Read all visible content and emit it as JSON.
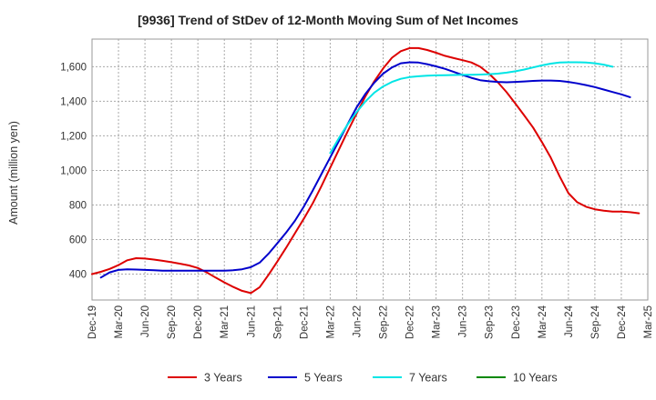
{
  "chart_data": {
    "type": "line",
    "title": "[9936]  Trend of StDev of 12-Month Moving Sum of Net Incomes",
    "ylabel": "Amount (million yen)",
    "xlabel": "",
    "ylim": [
      250,
      1760
    ],
    "yticks": [
      400,
      600,
      800,
      1000,
      1200,
      1400,
      1600
    ],
    "ytick_labels": [
      "400",
      "600",
      "800",
      "1,000",
      "1,200",
      "1,400",
      "1,600"
    ],
    "xticks": [
      "Dec-19",
      "Mar-20",
      "Jun-20",
      "Sep-20",
      "Dec-20",
      "Mar-21",
      "Jun-21",
      "Sep-21",
      "Dec-21",
      "Mar-22",
      "Jun-22",
      "Sep-22",
      "Dec-22",
      "Mar-23",
      "Jun-23",
      "Sep-23",
      "Dec-23",
      "Mar-24",
      "Jun-24",
      "Sep-24",
      "Dec-24",
      "Mar-25"
    ],
    "grid": true,
    "legend_position": "bottom",
    "series": [
      {
        "name": "3 Years",
        "color": "#dd0000",
        "points": [
          [
            0,
            400
          ],
          [
            1,
            413
          ],
          [
            2,
            430
          ],
          [
            3,
            452
          ],
          [
            4,
            480
          ],
          [
            5,
            492
          ],
          [
            6,
            490
          ],
          [
            7,
            484
          ],
          [
            8,
            477
          ],
          [
            9,
            469
          ],
          [
            10,
            460
          ],
          [
            11,
            450
          ],
          [
            12,
            435
          ],
          [
            13,
            410
          ],
          [
            14,
            380
          ],
          [
            15,
            352
          ],
          [
            16,
            326
          ],
          [
            17,
            303
          ],
          [
            18,
            290
          ],
          [
            19,
            324
          ],
          [
            20,
            396
          ],
          [
            21,
            472
          ],
          [
            22,
            552
          ],
          [
            23,
            636
          ],
          [
            24,
            720
          ],
          [
            25,
            808
          ],
          [
            26,
            908
          ],
          [
            27,
            1015
          ],
          [
            28,
            1122
          ],
          [
            29,
            1228
          ],
          [
            30,
            1330
          ],
          [
            31,
            1430
          ],
          [
            32,
            1516
          ],
          [
            33,
            1590
          ],
          [
            34,
            1652
          ],
          [
            35,
            1690
          ],
          [
            36,
            1708
          ],
          [
            37,
            1708
          ],
          [
            38,
            1697
          ],
          [
            39,
            1681
          ],
          [
            40,
            1663
          ],
          [
            41,
            1650
          ],
          [
            42,
            1638
          ],
          [
            43,
            1625
          ],
          [
            44,
            1600
          ],
          [
            45,
            1560
          ],
          [
            46,
            1510
          ],
          [
            47,
            1452
          ],
          [
            48,
            1386
          ],
          [
            49,
            1318
          ],
          [
            50,
            1248
          ],
          [
            51,
            1164
          ],
          [
            52,
            1074
          ],
          [
            53,
            966
          ],
          [
            54,
            868
          ],
          [
            55,
            816
          ],
          [
            56,
            790
          ],
          [
            57,
            775
          ],
          [
            58,
            767
          ],
          [
            59,
            762
          ],
          [
            60,
            762
          ],
          [
            61,
            758
          ],
          [
            62,
            752
          ]
        ]
      },
      {
        "name": "5 Years",
        "color": "#0000cc",
        "points": [
          [
            1,
            380
          ],
          [
            2,
            410
          ],
          [
            3,
            424
          ],
          [
            4,
            428
          ],
          [
            5,
            426
          ],
          [
            6,
            424
          ],
          [
            7,
            422
          ],
          [
            8,
            420
          ],
          [
            9,
            420
          ],
          [
            10,
            420
          ],
          [
            11,
            420
          ],
          [
            12,
            420
          ],
          [
            13,
            420
          ],
          [
            14,
            420
          ],
          [
            15,
            420
          ],
          [
            16,
            422
          ],
          [
            17,
            428
          ],
          [
            18,
            440
          ],
          [
            19,
            466
          ],
          [
            20,
            518
          ],
          [
            21,
            578
          ],
          [
            22,
            640
          ],
          [
            23,
            708
          ],
          [
            24,
            790
          ],
          [
            25,
            882
          ],
          [
            26,
            978
          ],
          [
            27,
            1075
          ],
          [
            28,
            1172
          ],
          [
            29,
            1270
          ],
          [
            30,
            1366
          ],
          [
            31,
            1444
          ],
          [
            32,
            1508
          ],
          [
            33,
            1560
          ],
          [
            34,
            1596
          ],
          [
            35,
            1620
          ],
          [
            36,
            1626
          ],
          [
            37,
            1624
          ],
          [
            38,
            1615
          ],
          [
            39,
            1602
          ],
          [
            40,
            1588
          ],
          [
            41,
            1570
          ],
          [
            42,
            1552
          ],
          [
            43,
            1536
          ],
          [
            44,
            1522
          ],
          [
            45,
            1516
          ],
          [
            46,
            1512
          ],
          [
            47,
            1510
          ],
          [
            48,
            1512
          ],
          [
            49,
            1515
          ],
          [
            50,
            1518
          ],
          [
            51,
            1520
          ],
          [
            52,
            1520
          ],
          [
            53,
            1518
          ],
          [
            54,
            1512
          ],
          [
            55,
            1504
          ],
          [
            56,
            1494
          ],
          [
            57,
            1482
          ],
          [
            58,
            1468
          ],
          [
            59,
            1454
          ],
          [
            60,
            1440
          ],
          [
            61,
            1424
          ]
        ]
      },
      {
        "name": "7 Years",
        "color": "#00e5e5",
        "points": [
          [
            27,
            1100
          ],
          [
            28,
            1188
          ],
          [
            29,
            1268
          ],
          [
            30,
            1338
          ],
          [
            31,
            1400
          ],
          [
            32,
            1450
          ],
          [
            33,
            1486
          ],
          [
            34,
            1512
          ],
          [
            35,
            1530
          ],
          [
            36,
            1540
          ],
          [
            37,
            1545
          ],
          [
            38,
            1548
          ],
          [
            39,
            1550
          ],
          [
            40,
            1551
          ],
          [
            41,
            1552
          ],
          [
            42,
            1553
          ],
          [
            43,
            1554
          ],
          [
            44,
            1555
          ],
          [
            45,
            1557
          ],
          [
            46,
            1560
          ],
          [
            47,
            1566
          ],
          [
            48,
            1574
          ],
          [
            49,
            1584
          ],
          [
            50,
            1596
          ],
          [
            51,
            1608
          ],
          [
            52,
            1618
          ],
          [
            53,
            1624
          ],
          [
            54,
            1626
          ],
          [
            55,
            1626
          ],
          [
            56,
            1624
          ],
          [
            57,
            1620
          ],
          [
            58,
            1612
          ],
          [
            59,
            1600
          ]
        ]
      },
      {
        "name": "10 Years",
        "color": "#008800",
        "points": []
      }
    ]
  }
}
